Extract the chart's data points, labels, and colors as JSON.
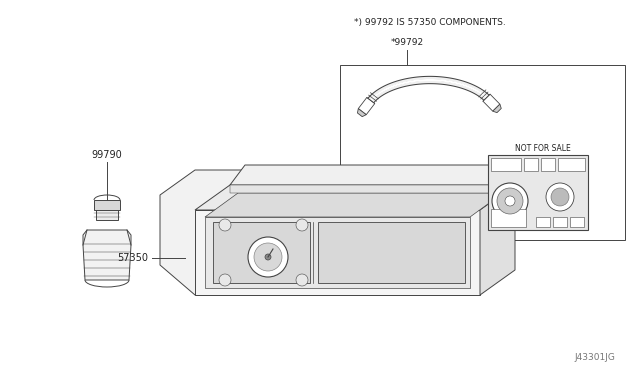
{
  "bg_color": "#ffffff",
  "fig_width": 6.4,
  "fig_height": 3.72,
  "dpi": 100,
  "note_text": "*) 99792 IS 57350 COMPONENTS.",
  "label_99792": "*99792",
  "label_99790": "99790",
  "label_57350": "57350",
  "watermark": "J43301JG",
  "not_for_sale": "NOT FOR SALE"
}
